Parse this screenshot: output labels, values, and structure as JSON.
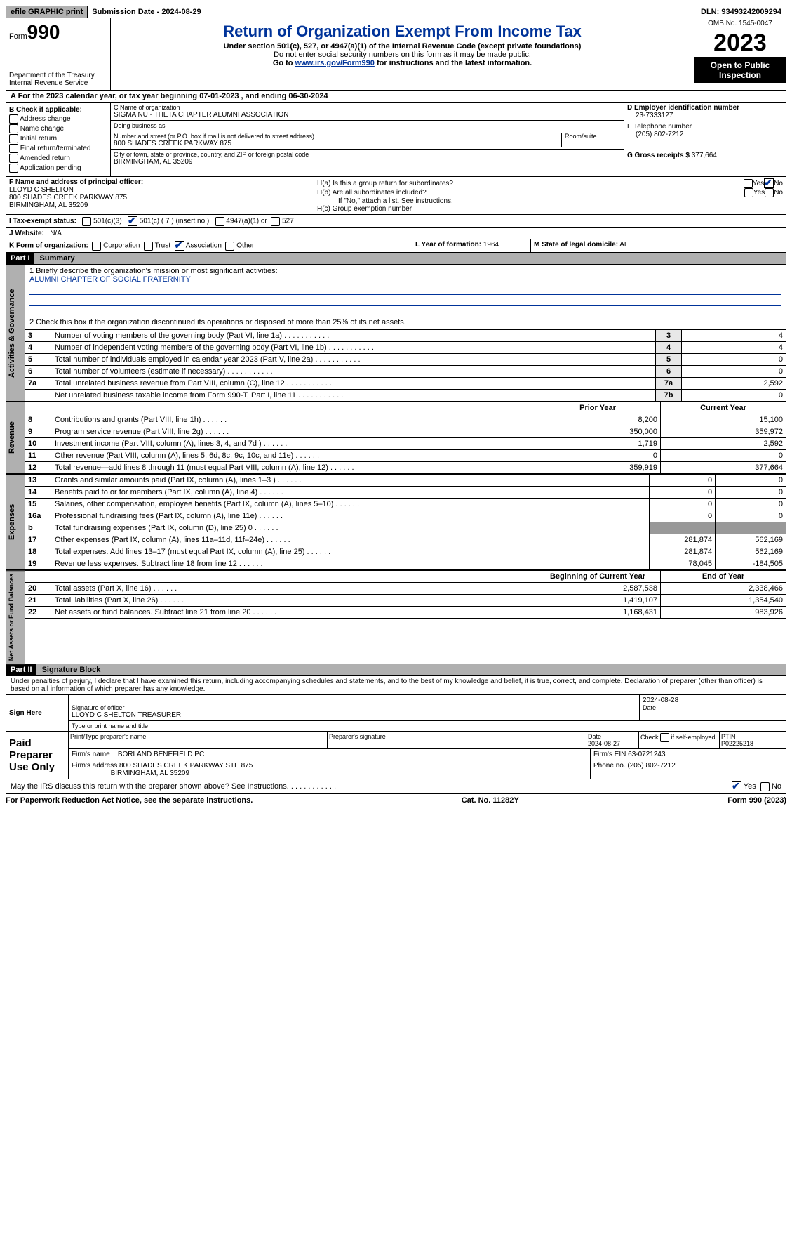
{
  "topbar": {
    "efile": "efile GRAPHIC print",
    "submission": "Submission Date - 2024-08-29",
    "dln": "DLN: 93493242009294"
  },
  "header": {
    "form_prefix": "Form",
    "form_no": "990",
    "title": "Return of Organization Exempt From Income Tax",
    "sub1": "Under section 501(c), 527, or 4947(a)(1) of the Internal Revenue Code (except private foundations)",
    "sub2": "Do not enter social security numbers on this form as it may be made public.",
    "sub3a": "Go to ",
    "sub3_link": "www.irs.gov/Form990",
    "sub3b": " for instructions and the latest information.",
    "dept": "Department of the Treasury Internal Revenue Service",
    "omb": "OMB No. 1545-0047",
    "year": "2023",
    "open": "Open to Public Inspection"
  },
  "tyrow": "A For the 2023 calendar year, or tax year beginning 07-01-2023   , and ending 06-30-2024",
  "B": {
    "lbl": "B Check if applicable:",
    "o1": "Address change",
    "o2": "Name change",
    "o3": "Initial return",
    "o4": "Final return/terminated",
    "o5": "Amended return",
    "o6": "Application pending"
  },
  "C": {
    "name_lbl": "C Name of organization",
    "name": "SIGMA NU - THETA CHAPTER ALUMNI ASSOCIATION",
    "dba_lbl": "Doing business as",
    "dba": "",
    "street_lbl": "Number and street (or P.O. box if mail is not delivered to street address)",
    "street": "800 SHADES CREEK PARKWAY 875",
    "room_lbl": "Room/suite",
    "city_lbl": "City or town, state or province, country, and ZIP or foreign postal code",
    "city": "BIRMINGHAM, AL  35209"
  },
  "D": {
    "lbl": "D Employer identification number",
    "val": "23-7333127"
  },
  "E": {
    "lbl": "E Telephone number",
    "val": "(205) 802-7212"
  },
  "G": {
    "lbl": "G Gross receipts $",
    "val": "377,664"
  },
  "F": {
    "lbl": "F  Name and address of principal officer:",
    "l1": "LLOYD C SHELTON",
    "l2": "800 SHADES CREEK PARKWAY 875",
    "l3": "BIRMINGHAM, AL  35209"
  },
  "H": {
    "a": "H(a)  Is this a group return for subordinates?",
    "b": "H(b)  Are all subordinates included?",
    "bno": "If \"No,\" attach a list. See instructions.",
    "c": "H(c)  Group exemption number",
    "yes": "Yes",
    "no": "No"
  },
  "I": {
    "lbl": "I    Tax-exempt status:",
    "o1": "501(c)(3)",
    "o2": "501(c) ( 7 ) (insert no.)",
    "o3": "4947(a)(1) or",
    "o4": "527"
  },
  "J": {
    "lbl": "J   Website:",
    "val": "N/A"
  },
  "K": {
    "lbl": "K Form of organization:",
    "o1": "Corporation",
    "o2": "Trust",
    "o3": "Association",
    "o4": "Other"
  },
  "L": {
    "lbl": "L Year of formation:",
    "val": "1964"
  },
  "M": {
    "lbl": "M State of legal domicile:",
    "val": "AL"
  },
  "part1": {
    "bar": "Part I",
    "title": "Summary"
  },
  "summary": {
    "l1_lbl": "1   Briefly describe the organization's mission or most significant activities:",
    "l1_val": "ALUMNI CHAPTER OF SOCIAL FRATERNITY",
    "l2": "2   Check this box       if the organization discontinued its operations or disposed of more than 25% of its net assets.",
    "side_gov": "Activities & Governance",
    "side_rev": "Revenue",
    "side_exp": "Expenses",
    "side_net": "Net Assets or Fund Balances",
    "prior": "Prior Year",
    "current": "Current Year",
    "beg": "Beginning of Current Year",
    "end": "End of Year",
    "gov_rows": [
      {
        "n": "3",
        "d": "Number of voting members of the governing body (Part VI, line 1a)",
        "c": "3",
        "v": "4"
      },
      {
        "n": "4",
        "d": "Number of independent voting members of the governing body (Part VI, line 1b)",
        "c": "4",
        "v": "4"
      },
      {
        "n": "5",
        "d": "Total number of individuals employed in calendar year 2023 (Part V, line 2a)",
        "c": "5",
        "v": "0"
      },
      {
        "n": "6",
        "d": "Total number of volunteers (estimate if necessary)",
        "c": "6",
        "v": "0"
      },
      {
        "n": "7a",
        "d": "Total unrelated business revenue from Part VIII, column (C), line 12",
        "c": "7a",
        "v": "2,592"
      },
      {
        "n": "",
        "d": "Net unrelated business taxable income from Form 990-T, Part I, line 11",
        "c": "7b",
        "v": "0"
      }
    ],
    "rev_rows": [
      {
        "n": "8",
        "d": "Contributions and grants (Part VIII, line 1h)",
        "p": "8,200",
        "c": "15,100"
      },
      {
        "n": "9",
        "d": "Program service revenue (Part VIII, line 2g)",
        "p": "350,000",
        "c": "359,972"
      },
      {
        "n": "10",
        "d": "Investment income (Part VIII, column (A), lines 3, 4, and 7d )",
        "p": "1,719",
        "c": "2,592"
      },
      {
        "n": "11",
        "d": "Other revenue (Part VIII, column (A), lines 5, 6d, 8c, 9c, 10c, and 11e)",
        "p": "0",
        "c": "0"
      },
      {
        "n": "12",
        "d": "Total revenue—add lines 8 through 11 (must equal Part VIII, column (A), line 12)",
        "p": "359,919",
        "c": "377,664"
      }
    ],
    "exp_rows": [
      {
        "n": "13",
        "d": "Grants and similar amounts paid (Part IX, column (A), lines 1–3 )",
        "p": "0",
        "c": "0"
      },
      {
        "n": "14",
        "d": "Benefits paid to or for members (Part IX, column (A), line 4)",
        "p": "0",
        "c": "0"
      },
      {
        "n": "15",
        "d": "Salaries, other compensation, employee benefits (Part IX, column (A), lines 5–10)",
        "p": "0",
        "c": "0"
      },
      {
        "n": "16a",
        "d": "Professional fundraising fees (Part IX, column (A), line 11e)",
        "p": "0",
        "c": "0"
      },
      {
        "n": "b",
        "d": "Total fundraising expenses (Part IX, column (D), line 25) 0",
        "p": "shade",
        "c": "shade"
      },
      {
        "n": "17",
        "d": "Other expenses (Part IX, column (A), lines 11a–11d, 11f–24e)",
        "p": "281,874",
        "c": "562,169"
      },
      {
        "n": "18",
        "d": "Total expenses. Add lines 13–17 (must equal Part IX, column (A), line 25)",
        "p": "281,874",
        "c": "562,169"
      },
      {
        "n": "19",
        "d": "Revenue less expenses. Subtract line 18 from line 12",
        "p": "78,045",
        "c": "-184,505"
      }
    ],
    "net_rows": [
      {
        "n": "20",
        "d": "Total assets (Part X, line 16)",
        "p": "2,587,538",
        "c": "2,338,466"
      },
      {
        "n": "21",
        "d": "Total liabilities (Part X, line 26)",
        "p": "1,419,107",
        "c": "1,354,540"
      },
      {
        "n": "22",
        "d": "Net assets or fund balances. Subtract line 21 from line 20",
        "p": "1,168,431",
        "c": "983,926"
      }
    ]
  },
  "part2": {
    "bar": "Part II",
    "title": "Signature Block"
  },
  "sig": {
    "penalty": "Under penalties of perjury, I declare that I have examined this return, including accompanying schedules and statements, and to the best of my knowledge and belief, it is true, correct, and complete. Declaration of preparer (other than officer) is based on all information of which preparer has any knowledge.",
    "sign_here": "Sign Here",
    "paid": "Paid Preparer Use Only",
    "officer_sig_lbl": "Signature of officer",
    "officer": "LLOYD C SHELTON TREASURER",
    "officer_date": "2024-08-28",
    "date_lbl": "Date",
    "type_lbl": "Type or print name and title",
    "prep_name_lbl": "Print/Type preparer's name",
    "prep_sig_lbl": "Preparer's signature",
    "prep_date_lbl": "Date",
    "prep_date": "2024-08-27",
    "self_lbl": "Check       if self-employed",
    "ptin_lbl": "PTIN",
    "ptin": "P02225218",
    "firm_name_lbl": "Firm's name",
    "firm_name": "BORLAND BENEFIELD PC",
    "firm_ein_lbl": "Firm's EIN",
    "firm_ein": "63-0721243",
    "firm_addr_lbl": "Firm's address",
    "firm_addr1": "800 SHADES CREEK PARKWAY STE 875",
    "firm_addr2": "BIRMINGHAM, AL  35209",
    "phone_lbl": "Phone no.",
    "phone": "(205) 802-7212",
    "discuss": "May the IRS discuss this return with the preparer shown above? See Instructions.",
    "yes": "Yes",
    "no": "No"
  },
  "footer": {
    "l": "For Paperwork Reduction Act Notice, see the separate instructions.",
    "c": "Cat. No. 11282Y",
    "r": "Form 990 (2023)"
  }
}
